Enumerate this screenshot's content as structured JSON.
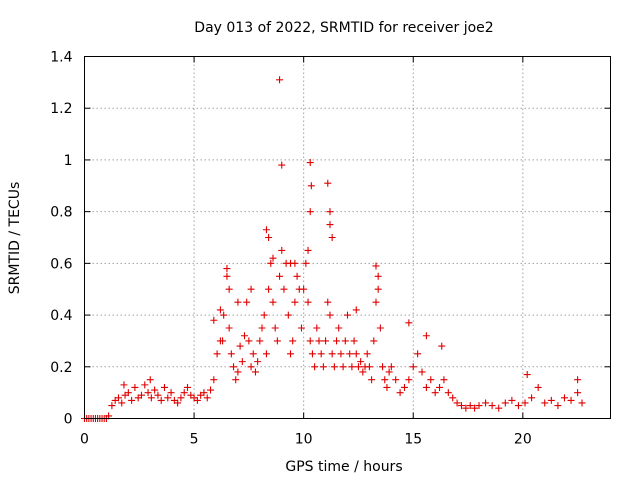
{
  "chart_data": {
    "type": "scatter",
    "title": "Day 013 of 2022, SRMTID for receiver joe2",
    "xlabel": "GPS time / hours",
    "ylabel": "SRMTID / TECUs",
    "xlim": [
      0,
      24
    ],
    "ylim": [
      0,
      1.4
    ],
    "xticks": [
      0,
      5,
      10,
      15,
      20
    ],
    "yticks": [
      0,
      0.2,
      0.4,
      0.6,
      0.8,
      1,
      1.2,
      1.4
    ],
    "ytick_labels": [
      "0",
      "0.2",
      "0.4",
      "0.6",
      "0.8",
      "1",
      "1.2",
      "1.4"
    ],
    "grid": true,
    "marker": "+",
    "color": "#e00000",
    "series": [
      {
        "name": "SRMTID",
        "x": [
          0.0,
          0.1,
          0.2,
          0.3,
          0.4,
          0.5,
          0.6,
          0.7,
          0.8,
          0.9,
          1.0,
          1.1,
          1.25,
          1.4,
          1.55,
          1.7,
          1.85,
          2.0,
          2.15,
          2.3,
          2.45,
          2.6,
          2.75,
          2.9,
          3.05,
          3.2,
          3.35,
          3.5,
          3.65,
          3.8,
          3.95,
          4.1,
          4.25,
          4.4,
          4.55,
          4.7,
          4.85,
          5.0,
          5.15,
          5.3,
          5.45,
          5.6,
          5.75,
          5.9,
          6.05,
          6.2,
          6.35,
          6.5,
          6.6,
          6.7,
          6.8,
          6.9,
          7.0,
          7.1,
          7.2,
          7.3,
          7.4,
          7.5,
          7.6,
          7.7,
          7.8,
          7.9,
          8.0,
          8.1,
          8.2,
          8.3,
          8.4,
          8.5,
          8.6,
          8.7,
          8.8,
          8.9,
          9.0,
          9.1,
          9.2,
          9.3,
          9.4,
          9.5,
          9.6,
          9.7,
          9.8,
          9.9,
          10.0,
          10.1,
          10.2,
          10.3,
          10.4,
          10.5,
          10.6,
          10.7,
          10.8,
          10.9,
          11.0,
          11.1,
          11.2,
          11.3,
          11.4,
          11.5,
          11.6,
          11.7,
          11.8,
          11.9,
          12.0,
          12.1,
          12.2,
          12.3,
          12.4,
          12.5,
          12.6,
          12.7,
          12.8,
          12.9,
          13.0,
          13.1,
          13.2,
          13.3,
          13.4,
          13.5,
          13.6,
          13.7,
          13.8,
          13.9,
          14.0,
          14.2,
          14.4,
          14.6,
          14.8,
          15.0,
          15.2,
          15.4,
          15.6,
          15.8,
          16.0,
          16.2,
          16.4,
          16.6,
          16.8,
          17.0,
          17.2,
          17.4,
          17.6,
          17.8,
          18.0,
          18.3,
          18.6,
          18.9,
          19.2,
          19.5,
          19.8,
          20.1,
          20.4,
          20.7,
          21.0,
          21.3,
          21.6,
          21.9,
          22.2,
          22.5,
          22.7,
          8.9,
          9.0,
          10.3,
          10.35,
          10.3,
          11.1,
          11.2,
          11.2,
          11.3,
          10.2,
          8.3,
          8.4,
          8.6,
          9.4,
          13.3,
          13.4,
          14.8,
          6.5,
          6.6,
          7.0,
          6.2,
          5.9,
          20.2,
          22.5,
          3.0,
          1.8,
          6.3,
          7.6,
          9.6,
          12.4,
          15.6,
          16.3
        ],
        "y": [
          0.0,
          0.0,
          0.0,
          0.0,
          0.0,
          0.0,
          0.0,
          0.0,
          0.0,
          0.0,
          0.0,
          0.01,
          0.05,
          0.07,
          0.08,
          0.06,
          0.09,
          0.1,
          0.07,
          0.12,
          0.08,
          0.09,
          0.13,
          0.1,
          0.08,
          0.11,
          0.09,
          0.07,
          0.12,
          0.08,
          0.1,
          0.07,
          0.06,
          0.08,
          0.1,
          0.12,
          0.09,
          0.08,
          0.07,
          0.09,
          0.1,
          0.08,
          0.11,
          0.15,
          0.25,
          0.3,
          0.4,
          0.55,
          0.35,
          0.25,
          0.2,
          0.15,
          0.18,
          0.28,
          0.22,
          0.32,
          0.45,
          0.3,
          0.2,
          0.25,
          0.18,
          0.22,
          0.3,
          0.35,
          0.4,
          0.25,
          0.5,
          0.6,
          0.45,
          0.35,
          0.3,
          0.55,
          0.65,
          0.5,
          0.6,
          0.4,
          0.25,
          0.3,
          0.45,
          0.55,
          0.5,
          0.35,
          0.5,
          0.6,
          0.45,
          0.3,
          0.25,
          0.2,
          0.35,
          0.3,
          0.25,
          0.2,
          0.3,
          0.45,
          0.4,
          0.25,
          0.2,
          0.3,
          0.35,
          0.25,
          0.2,
          0.3,
          0.4,
          0.25,
          0.2,
          0.3,
          0.25,
          0.2,
          0.22,
          0.18,
          0.2,
          0.25,
          0.2,
          0.15,
          0.3,
          0.45,
          0.55,
          0.35,
          0.2,
          0.15,
          0.12,
          0.18,
          0.2,
          0.15,
          0.1,
          0.12,
          0.15,
          0.2,
          0.25,
          0.18,
          0.12,
          0.15,
          0.1,
          0.12,
          0.15,
          0.1,
          0.08,
          0.06,
          0.05,
          0.04,
          0.05,
          0.04,
          0.05,
          0.06,
          0.05,
          0.04,
          0.06,
          0.07,
          0.05,
          0.06,
          0.08,
          0.12,
          0.06,
          0.07,
          0.05,
          0.08,
          0.07,
          0.1,
          0.06,
          1.31,
          0.98,
          0.99,
          0.9,
          0.8,
          0.91,
          0.8,
          0.75,
          0.7,
          0.65,
          0.73,
          0.7,
          0.62,
          0.6,
          0.59,
          0.5,
          0.37,
          0.58,
          0.5,
          0.45,
          0.42,
          0.38,
          0.17,
          0.15,
          0.15,
          0.13,
          0.3,
          0.5,
          0.6,
          0.42,
          0.32,
          0.28
        ]
      }
    ]
  }
}
